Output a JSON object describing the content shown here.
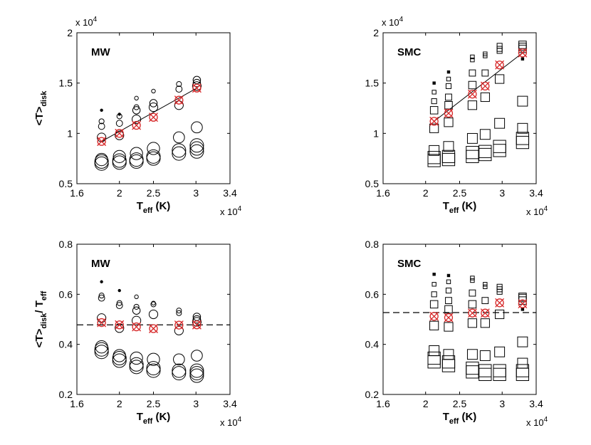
{
  "chart_data": [
    {
      "type": "scatter",
      "panel_label": "MW",
      "xlabel_main": "T",
      "xlabel_sub": "eff",
      "xlabel_unit": " (K)",
      "ylabel_main": "<T>",
      "ylabel_sub": "disk",
      "ylabel_tail": "",
      "xlim": [
        16000,
        34000
      ],
      "ylim": [
        5000,
        20000
      ],
      "xticks": [
        16000,
        21000,
        25000,
        30000,
        34000
      ],
      "xtick_labels": [
        "1.6",
        "2",
        "2.5",
        "3",
        "3.4"
      ],
      "yticks": [
        5000,
        10000,
        15000,
        20000
      ],
      "ytick_labels": [
        "0.5",
        "1",
        "1.5",
        "2"
      ],
      "x_multiplier": "x 10",
      "y_multiplier": "x 10",
      "multiplier_exp": "4",
      "marker": "circle",
      "grid": false,
      "fit": {
        "type": "line",
        "x": [
          18900,
          30100
        ],
        "y": [
          9200,
          14500
        ]
      },
      "mean_points": {
        "marker": "x-circle",
        "color": "#d62728",
        "x": [
          18900,
          21000,
          23000,
          25000,
          28000,
          30100
        ],
        "y": [
          9200,
          10000,
          10800,
          11600,
          13300,
          14500
        ]
      },
      "points": [
        {
          "x": 18900,
          "y": 12300,
          "s": 1
        },
        {
          "x": 18900,
          "y": 11200,
          "s": 3
        },
        {
          "x": 18900,
          "y": 10700,
          "s": 4
        },
        {
          "x": 18900,
          "y": 9600,
          "s": 6
        },
        {
          "x": 18900,
          "y": 7400,
          "s": 9
        },
        {
          "x": 18900,
          "y": 7200,
          "s": 10
        },
        {
          "x": 18900,
          "y": 7000,
          "s": 10
        },
        {
          "x": 21000,
          "y": 11900,
          "s": 1
        },
        {
          "x": 21000,
          "y": 11700,
          "s": 3
        },
        {
          "x": 21000,
          "y": 11000,
          "s": 4
        },
        {
          "x": 21000,
          "y": 9800,
          "s": 6
        },
        {
          "x": 21000,
          "y": 7700,
          "s": 9
        },
        {
          "x": 21000,
          "y": 7300,
          "s": 10
        },
        {
          "x": 21000,
          "y": 7100,
          "s": 10
        },
        {
          "x": 23000,
          "y": 13500,
          "s": 2
        },
        {
          "x": 23000,
          "y": 12600,
          "s": 3
        },
        {
          "x": 23000,
          "y": 12300,
          "s": 5
        },
        {
          "x": 23000,
          "y": 11400,
          "s": 6
        },
        {
          "x": 23000,
          "y": 8000,
          "s": 9
        },
        {
          "x": 23000,
          "y": 7400,
          "s": 10
        },
        {
          "x": 23000,
          "y": 7200,
          "s": 10
        },
        {
          "x": 25000,
          "y": 14200,
          "s": 2
        },
        {
          "x": 25000,
          "y": 13000,
          "s": 5
        },
        {
          "x": 25000,
          "y": 12600,
          "s": 6
        },
        {
          "x": 25000,
          "y": 8500,
          "s": 9
        },
        {
          "x": 25000,
          "y": 7700,
          "s": 10
        },
        {
          "x": 25000,
          "y": 7500,
          "s": 10
        },
        {
          "x": 28000,
          "y": 14900,
          "s": 3
        },
        {
          "x": 28000,
          "y": 14400,
          "s": 4
        },
        {
          "x": 28000,
          "y": 12800,
          "s": 6
        },
        {
          "x": 28000,
          "y": 9600,
          "s": 8
        },
        {
          "x": 28000,
          "y": 8300,
          "s": 10
        },
        {
          "x": 28000,
          "y": 8000,
          "s": 10
        },
        {
          "x": 30100,
          "y": 15300,
          "s": 5
        },
        {
          "x": 30100,
          "y": 15000,
          "s": 5
        },
        {
          "x": 30100,
          "y": 14700,
          "s": 6
        },
        {
          "x": 30100,
          "y": 10600,
          "s": 8
        },
        {
          "x": 30100,
          "y": 8800,
          "s": 10
        },
        {
          "x": 30100,
          "y": 8500,
          "s": 10
        },
        {
          "x": 30100,
          "y": 8200,
          "s": 10
        }
      ]
    },
    {
      "type": "scatter",
      "panel_label": "SMC",
      "xlabel_main": "T",
      "xlabel_sub": "eff",
      "xlabel_unit": " (K)",
      "ylabel_main": "",
      "ylabel_sub": "",
      "ylabel_tail": "",
      "xlim": [
        16000,
        34000
      ],
      "ylim": [
        5000,
        20000
      ],
      "xticks": [
        16000,
        21000,
        25000,
        30000,
        34000
      ],
      "xtick_labels": [
        "1.6",
        "2",
        "2.5",
        "3",
        "3.4"
      ],
      "yticks": [
        5000,
        10000,
        15000,
        20000
      ],
      "ytick_labels": [
        "0.5",
        "1",
        "1.5",
        "2"
      ],
      "x_multiplier": "x 10",
      "y_multiplier": "x 10",
      "multiplier_exp": "4",
      "marker": "square",
      "grid": false,
      "fit": {
        "type": "line",
        "x": [
          22000,
          32400
        ],
        "y": [
          11200,
          18000
        ]
      },
      "mean_points": {
        "marker": "x-circle",
        "color": "#d62728",
        "x": [
          22000,
          23700,
          26500,
          28000,
          29700,
          32400
        ],
        "y": [
          11200,
          12000,
          13900,
          14700,
          16800,
          18000
        ]
      },
      "points": [
        {
          "x": 22000,
          "y": 15000,
          "s": 1
        },
        {
          "x": 22000,
          "y": 14100,
          "s": 2
        },
        {
          "x": 22000,
          "y": 13200,
          "s": 3
        },
        {
          "x": 22000,
          "y": 12300,
          "s": 5
        },
        {
          "x": 22000,
          "y": 10500,
          "s": 6
        },
        {
          "x": 22000,
          "y": 8300,
          "s": 7
        },
        {
          "x": 22000,
          "y": 7600,
          "s": 9
        },
        {
          "x": 22000,
          "y": 7300,
          "s": 9
        },
        {
          "x": 23700,
          "y": 16100,
          "s": 1
        },
        {
          "x": 23700,
          "y": 15400,
          "s": 2
        },
        {
          "x": 23700,
          "y": 14700,
          "s": 3
        },
        {
          "x": 23700,
          "y": 13600,
          "s": 4
        },
        {
          "x": 23700,
          "y": 12800,
          "s": 5
        },
        {
          "x": 23700,
          "y": 11100,
          "s": 6
        },
        {
          "x": 23700,
          "y": 8700,
          "s": 7
        },
        {
          "x": 23700,
          "y": 7700,
          "s": 9
        },
        {
          "x": 23700,
          "y": 7400,
          "s": 9
        },
        {
          "x": 26500,
          "y": 17600,
          "s": 2
        },
        {
          "x": 26500,
          "y": 17300,
          "s": 2
        },
        {
          "x": 26500,
          "y": 16000,
          "s": 4
        },
        {
          "x": 26500,
          "y": 14800,
          "s": 5
        },
        {
          "x": 26500,
          "y": 12800,
          "s": 6
        },
        {
          "x": 26500,
          "y": 9500,
          "s": 7
        },
        {
          "x": 26500,
          "y": 8100,
          "s": 9
        },
        {
          "x": 26500,
          "y": 7700,
          "s": 9
        },
        {
          "x": 28000,
          "y": 17900,
          "s": 2
        },
        {
          "x": 28000,
          "y": 17700,
          "s": 2
        },
        {
          "x": 28000,
          "y": 16000,
          "s": 4
        },
        {
          "x": 28000,
          "y": 13600,
          "s": 6
        },
        {
          "x": 28000,
          "y": 9900,
          "s": 7
        },
        {
          "x": 28000,
          "y": 8200,
          "s": 9
        },
        {
          "x": 28000,
          "y": 7900,
          "s": 9
        },
        {
          "x": 29700,
          "y": 18700,
          "s": 3
        },
        {
          "x": 29700,
          "y": 18400,
          "s": 3
        },
        {
          "x": 29700,
          "y": 18200,
          "s": 3
        },
        {
          "x": 29700,
          "y": 15400,
          "s": 6
        },
        {
          "x": 29700,
          "y": 11000,
          "s": 7
        },
        {
          "x": 29700,
          "y": 8700,
          "s": 9
        },
        {
          "x": 29700,
          "y": 8300,
          "s": 9
        },
        {
          "x": 32400,
          "y": 18800,
          "s": 5
        },
        {
          "x": 32400,
          "y": 18600,
          "s": 5
        },
        {
          "x": 32400,
          "y": 18400,
          "s": 5
        },
        {
          "x": 32400,
          "y": 17400,
          "s": 1
        },
        {
          "x": 32400,
          "y": 13200,
          "s": 7
        },
        {
          "x": 32400,
          "y": 10500,
          "s": 7
        },
        {
          "x": 32400,
          "y": 9500,
          "s": 9
        },
        {
          "x": 32400,
          "y": 9100,
          "s": 9
        }
      ]
    },
    {
      "type": "scatter",
      "panel_label": "MW",
      "xlabel_main": "T",
      "xlabel_sub": "eff",
      "xlabel_unit": " (K)",
      "ylabel_main": "<T>",
      "ylabel_sub": "disk",
      "ylabel_tail": "/ T",
      "ylabel_tail_sub": "eff",
      "xlim": [
        16000,
        34000
      ],
      "ylim": [
        0.2,
        0.8
      ],
      "xticks": [
        16000,
        21000,
        25000,
        30000,
        34000
      ],
      "xtick_labels": [
        "1.6",
        "2",
        "2.5",
        "3",
        "3.4"
      ],
      "yticks": [
        0.2,
        0.4,
        0.6,
        0.8
      ],
      "ytick_labels": [
        "0.2",
        "0.4",
        "0.6",
        "0.8"
      ],
      "x_multiplier": "x 10",
      "y_multiplier": "",
      "multiplier_exp": "4",
      "marker": "circle",
      "grid": false,
      "hline": {
        "y": 0.478,
        "style": "dashed"
      },
      "mean_points": {
        "marker": "x-circle",
        "color": "#d62728",
        "x": [
          18900,
          21000,
          23000,
          25000,
          28000,
          30100
        ],
        "y": [
          0.487,
          0.478,
          0.47,
          0.463,
          0.477,
          0.478
        ]
      },
      "points": [
        {
          "x": 18900,
          "y": 0.65,
          "s": 1
        },
        {
          "x": 18900,
          "y": 0.595,
          "s": 3
        },
        {
          "x": 18900,
          "y": 0.585,
          "s": 4
        },
        {
          "x": 18900,
          "y": 0.505,
          "s": 6
        },
        {
          "x": 18900,
          "y": 0.39,
          "s": 9
        },
        {
          "x": 18900,
          "y": 0.38,
          "s": 10
        },
        {
          "x": 18900,
          "y": 0.37,
          "s": 10
        },
        {
          "x": 21000,
          "y": 0.615,
          "s": 1
        },
        {
          "x": 21000,
          "y": 0.565,
          "s": 3
        },
        {
          "x": 21000,
          "y": 0.555,
          "s": 4
        },
        {
          "x": 21000,
          "y": 0.465,
          "s": 6
        },
        {
          "x": 21000,
          "y": 0.355,
          "s": 9
        },
        {
          "x": 21000,
          "y": 0.345,
          "s": 10
        },
        {
          "x": 21000,
          "y": 0.335,
          "s": 10
        },
        {
          "x": 23000,
          "y": 0.59,
          "s": 2
        },
        {
          "x": 23000,
          "y": 0.55,
          "s": 3
        },
        {
          "x": 23000,
          "y": 0.535,
          "s": 5
        },
        {
          "x": 23000,
          "y": 0.495,
          "s": 6
        },
        {
          "x": 23000,
          "y": 0.345,
          "s": 9
        },
        {
          "x": 23000,
          "y": 0.32,
          "s": 10
        },
        {
          "x": 23000,
          "y": 0.31,
          "s": 10
        },
        {
          "x": 25000,
          "y": 0.565,
          "s": 2
        },
        {
          "x": 25000,
          "y": 0.56,
          "s": 3
        },
        {
          "x": 25000,
          "y": 0.52,
          "s": 6
        },
        {
          "x": 25000,
          "y": 0.34,
          "s": 9
        },
        {
          "x": 25000,
          "y": 0.305,
          "s": 10
        },
        {
          "x": 25000,
          "y": 0.295,
          "s": 10
        },
        {
          "x": 28000,
          "y": 0.535,
          "s": 3
        },
        {
          "x": 28000,
          "y": 0.525,
          "s": 3
        },
        {
          "x": 28000,
          "y": 0.455,
          "s": 6
        },
        {
          "x": 28000,
          "y": 0.34,
          "s": 8
        },
        {
          "x": 28000,
          "y": 0.295,
          "s": 10
        },
        {
          "x": 28000,
          "y": 0.285,
          "s": 10
        },
        {
          "x": 30100,
          "y": 0.51,
          "s": 5
        },
        {
          "x": 30100,
          "y": 0.5,
          "s": 5
        },
        {
          "x": 30100,
          "y": 0.49,
          "s": 6
        },
        {
          "x": 30100,
          "y": 0.355,
          "s": 8
        },
        {
          "x": 30100,
          "y": 0.295,
          "s": 10
        },
        {
          "x": 30100,
          "y": 0.285,
          "s": 10
        },
        {
          "x": 30100,
          "y": 0.275,
          "s": 10
        }
      ]
    },
    {
      "type": "scatter",
      "panel_label": "SMC",
      "xlabel_main": "T",
      "xlabel_sub": "eff",
      "xlabel_unit": " (K)",
      "ylabel_main": "",
      "ylabel_sub": "",
      "ylabel_tail": "",
      "xlim": [
        16000,
        34000
      ],
      "ylim": [
        0.2,
        0.8
      ],
      "xticks": [
        16000,
        21000,
        25000,
        30000,
        34000
      ],
      "xtick_labels": [
        "1.6",
        "2",
        "2.5",
        "3",
        "3.4"
      ],
      "yticks": [
        0.2,
        0.4,
        0.6,
        0.8
      ],
      "ytick_labels": [
        "0.2",
        "0.4",
        "0.6",
        "0.8"
      ],
      "x_multiplier": "x 10",
      "y_multiplier": "",
      "multiplier_exp": "4",
      "marker": "square",
      "grid": false,
      "hline": {
        "y": 0.527,
        "style": "dashed"
      },
      "mean_points": {
        "marker": "x-circle",
        "color": "#d62728",
        "x": [
          22000,
          23700,
          26500,
          28000,
          29700,
          32400
        ],
        "y": [
          0.512,
          0.507,
          0.525,
          0.525,
          0.566,
          0.562
        ]
      },
      "points": [
        {
          "x": 22000,
          "y": 0.68,
          "s": 1
        },
        {
          "x": 22000,
          "y": 0.64,
          "s": 2
        },
        {
          "x": 22000,
          "y": 0.6,
          "s": 3
        },
        {
          "x": 22000,
          "y": 0.56,
          "s": 5
        },
        {
          "x": 22000,
          "y": 0.475,
          "s": 6
        },
        {
          "x": 22000,
          "y": 0.375,
          "s": 7
        },
        {
          "x": 22000,
          "y": 0.345,
          "s": 9
        },
        {
          "x": 22000,
          "y": 0.33,
          "s": 9
        },
        {
          "x": 23700,
          "y": 0.675,
          "s": 1
        },
        {
          "x": 23700,
          "y": 0.65,
          "s": 2
        },
        {
          "x": 23700,
          "y": 0.615,
          "s": 3
        },
        {
          "x": 23700,
          "y": 0.575,
          "s": 4
        },
        {
          "x": 23700,
          "y": 0.54,
          "s": 5
        },
        {
          "x": 23700,
          "y": 0.47,
          "s": 6
        },
        {
          "x": 23700,
          "y": 0.36,
          "s": 7
        },
        {
          "x": 23700,
          "y": 0.33,
          "s": 9
        },
        {
          "x": 23700,
          "y": 0.315,
          "s": 9
        },
        {
          "x": 26500,
          "y": 0.665,
          "s": 2
        },
        {
          "x": 26500,
          "y": 0.655,
          "s": 2
        },
        {
          "x": 26500,
          "y": 0.605,
          "s": 4
        },
        {
          "x": 26500,
          "y": 0.56,
          "s": 5
        },
        {
          "x": 26500,
          "y": 0.485,
          "s": 6
        },
        {
          "x": 26500,
          "y": 0.36,
          "s": 7
        },
        {
          "x": 26500,
          "y": 0.305,
          "s": 9
        },
        {
          "x": 26500,
          "y": 0.29,
          "s": 9
        },
        {
          "x": 28000,
          "y": 0.64,
          "s": 2
        },
        {
          "x": 28000,
          "y": 0.63,
          "s": 2
        },
        {
          "x": 28000,
          "y": 0.575,
          "s": 4
        },
        {
          "x": 28000,
          "y": 0.485,
          "s": 6
        },
        {
          "x": 28000,
          "y": 0.355,
          "s": 7
        },
        {
          "x": 28000,
          "y": 0.295,
          "s": 9
        },
        {
          "x": 28000,
          "y": 0.28,
          "s": 9
        },
        {
          "x": 29700,
          "y": 0.63,
          "s": 3
        },
        {
          "x": 29700,
          "y": 0.62,
          "s": 3
        },
        {
          "x": 29700,
          "y": 0.61,
          "s": 3
        },
        {
          "x": 29700,
          "y": 0.52,
          "s": 6
        },
        {
          "x": 29700,
          "y": 0.37,
          "s": 7
        },
        {
          "x": 29700,
          "y": 0.295,
          "s": 9
        },
        {
          "x": 29700,
          "y": 0.28,
          "s": 9
        },
        {
          "x": 32400,
          "y": 0.59,
          "s": 5
        },
        {
          "x": 32400,
          "y": 0.585,
          "s": 5
        },
        {
          "x": 32400,
          "y": 0.575,
          "s": 5
        },
        {
          "x": 32400,
          "y": 0.54,
          "s": 1
        },
        {
          "x": 32400,
          "y": 0.41,
          "s": 7
        },
        {
          "x": 32400,
          "y": 0.325,
          "s": 7
        },
        {
          "x": 32400,
          "y": 0.295,
          "s": 9
        },
        {
          "x": 32400,
          "y": 0.28,
          "s": 9
        }
      ]
    }
  ]
}
